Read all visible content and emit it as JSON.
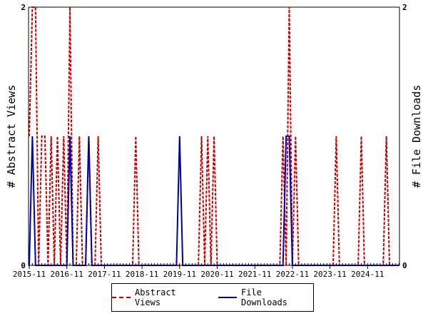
{
  "chart_data": {
    "type": "line",
    "title": "",
    "ylabel_left": "# Abstract Views",
    "ylabel_right": "# File Downloads",
    "ylim": [
      0,
      2
    ],
    "yticks": [
      0,
      2
    ],
    "grid": false,
    "legend_position": "bottom-center",
    "x_tick_labels": [
      "2015-11",
      "2016-11",
      "2017-11",
      "2018-11",
      "2019-11",
      "2020-11",
      "2021-11",
      "2022-11",
      "2023-11",
      "2024-11"
    ],
    "x_start": "2015-11",
    "series": [
      {
        "name": "Abstract Views",
        "color": "#cc0000",
        "dash": true,
        "points": [
          [
            "2015-11",
            1
          ],
          [
            "2015-12",
            2
          ],
          [
            "2016-01",
            2
          ],
          [
            "2016-02",
            0
          ],
          [
            "2016-03",
            1
          ],
          [
            "2016-04",
            1
          ],
          [
            "2016-05",
            0
          ],
          [
            "2016-06",
            1
          ],
          [
            "2016-07",
            0
          ],
          [
            "2016-08",
            1
          ],
          [
            "2016-09",
            0
          ],
          [
            "2016-10",
            1
          ],
          [
            "2016-11",
            0
          ],
          [
            "2016-12",
            2
          ],
          [
            "2017-01",
            0
          ],
          [
            "2017-02",
            0
          ],
          [
            "2017-03",
            1
          ],
          [
            "2017-04",
            0
          ],
          [
            "2017-05",
            0
          ],
          [
            "2017-06",
            1
          ],
          [
            "2017-07",
            0
          ],
          [
            "2017-08",
            0
          ],
          [
            "2017-09",
            1
          ],
          [
            "2017-10",
            0
          ],
          [
            "2018-09",
            1
          ],
          [
            "2018-10",
            0
          ],
          [
            "2020-06",
            1
          ],
          [
            "2020-07",
            0
          ],
          [
            "2020-08",
            1
          ],
          [
            "2020-09",
            0
          ],
          [
            "2020-10",
            1
          ],
          [
            "2020-11",
            0
          ],
          [
            "2022-08",
            1
          ],
          [
            "2022-09",
            0
          ],
          [
            "2022-10",
            2
          ],
          [
            "2022-11",
            0
          ],
          [
            "2022-12",
            1
          ],
          [
            "2023-01",
            0
          ],
          [
            "2024-01",
            1
          ],
          [
            "2024-02",
            0
          ],
          [
            "2024-09",
            1
          ],
          [
            "2024-10",
            0
          ],
          [
            "2025-05",
            1
          ],
          [
            "2025-06",
            0
          ]
        ]
      },
      {
        "name": "File Downloads",
        "color": "#0000aa",
        "dash": false,
        "points": [
          [
            "2015-12",
            1
          ],
          [
            "2016-01",
            0
          ],
          [
            "2016-12",
            1
          ],
          [
            "2017-01",
            0
          ],
          [
            "2017-06",
            1
          ],
          [
            "2017-07",
            0
          ],
          [
            "2019-11",
            1
          ],
          [
            "2019-12",
            0
          ],
          [
            "2022-09",
            1
          ],
          [
            "2022-10",
            1
          ],
          [
            "2022-11",
            0
          ]
        ]
      }
    ]
  }
}
